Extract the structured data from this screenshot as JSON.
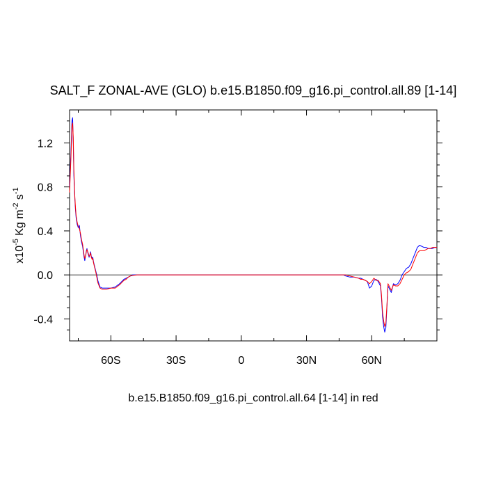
{
  "chart_data": {
    "type": "line",
    "title": "SALT_F ZONAL-AVE (GLO) b.e15.B1850.f09_g16.pi_control.all.89 [1-14]",
    "xlabel": "b.e15.B1850.f09_g16.pi_control.all.64 [1-14] in red",
    "ylabel": {
      "scale": "x10",
      "scale_exp": "-5",
      "unit1": " Kg m",
      "unit1_exp": "-2",
      "unit2": " s",
      "unit2_exp": "-1"
    },
    "xlim": [
      -79,
      90
    ],
    "ylim": [
      -0.6,
      1.5
    ],
    "x_ticks": [
      {
        "value": -60,
        "label": "60S"
      },
      {
        "value": -30,
        "label": "30S"
      },
      {
        "value": 0,
        "label": "0"
      },
      {
        "value": 30,
        "label": "30N"
      },
      {
        "value": 60,
        "label": "60N"
      }
    ],
    "y_ticks": [
      {
        "value": 1.2,
        "label": "1.2"
      },
      {
        "value": 0.8,
        "label": "0.8"
      },
      {
        "value": 0.4,
        "label": "0.4"
      },
      {
        "value": 0.0,
        "label": "0.0"
      },
      {
        "value": -0.4,
        "label": "-0.4"
      }
    ],
    "reference_line": 0,
    "series": [
      {
        "color": "#0000ff",
        "x": [
          -79,
          -78.4,
          -77.9,
          -77.6,
          -77.3,
          -77,
          -76.6,
          -76.3,
          -76,
          -75.5,
          -75,
          -74.5,
          -74,
          -73.5,
          -73,
          -72.6,
          -72.3,
          -72,
          -71.6,
          -71.3,
          -71,
          -70.6,
          -70.3,
          -70,
          -69.6,
          -69.3,
          -69,
          -68.6,
          -68.3,
          -68,
          -67.5,
          -67,
          -66.5,
          -66,
          -65,
          -64,
          -62,
          -60,
          -58,
          -56,
          -55,
          -54,
          -53,
          -52,
          -51,
          -50,
          -48,
          -45,
          -40,
          -30,
          -20,
          -10,
          0,
          10,
          20,
          30,
          40,
          43,
          45,
          47,
          48,
          50,
          52,
          54,
          55,
          56,
          57,
          58,
          59,
          60,
          61,
          62,
          63,
          64,
          64.5,
          65,
          65.5,
          66,
          66.5,
          67,
          67.5,
          68,
          69,
          70,
          71,
          72,
          73,
          74,
          75,
          76,
          77,
          78,
          79,
          80,
          81,
          82,
          83,
          84,
          85,
          86,
          87,
          88,
          89,
          90
        ],
        "y": [
          0.8,
          1.1,
          1.4,
          1.43,
          1.2,
          0.9,
          0.7,
          0.6,
          0.52,
          0.46,
          0.43,
          0.45,
          0.36,
          0.3,
          0.26,
          0.2,
          0.16,
          0.13,
          0.18,
          0.22,
          0.24,
          0.2,
          0.18,
          0.16,
          0.19,
          0.21,
          0.17,
          0.15,
          0.16,
          0.12,
          0.08,
          0.04,
          0.0,
          -0.05,
          -0.11,
          -0.12,
          -0.12,
          -0.12,
          -0.11,
          -0.08,
          -0.06,
          -0.04,
          -0.03,
          -0.02,
          -0.01,
          0.0,
          0.0,
          0.0,
          0.0,
          0.0,
          0.0,
          0.0,
          0.0,
          0.0,
          0.0,
          0.0,
          0.0,
          0.0,
          0.0,
          0.0,
          -0.01,
          -0.02,
          -0.02,
          -0.03,
          -0.03,
          -0.04,
          -0.05,
          -0.06,
          -0.12,
          -0.1,
          -0.05,
          -0.04,
          -0.06,
          -0.1,
          -0.2,
          -0.38,
          -0.47,
          -0.52,
          -0.48,
          -0.3,
          -0.1,
          -0.12,
          -0.16,
          -0.08,
          -0.09,
          -0.08,
          -0.05,
          0.0,
          0.03,
          0.06,
          0.07,
          0.1,
          0.15,
          0.2,
          0.25,
          0.27,
          0.26,
          0.25,
          0.25,
          0.24,
          0.24,
          0.24,
          0.25,
          0.25
        ]
      },
      {
        "color": "#ff0000",
        "x": [
          -79,
          -78.4,
          -77.9,
          -77.6,
          -77.3,
          -77,
          -76.6,
          -76.3,
          -76,
          -75.5,
          -75,
          -74.5,
          -74,
          -73.5,
          -73,
          -72.6,
          -72.3,
          -72,
          -71.6,
          -71.3,
          -71,
          -70.6,
          -70.3,
          -70,
          -69.6,
          -69.3,
          -69,
          -68.6,
          -68.3,
          -68,
          -67.5,
          -67,
          -66.5,
          -66,
          -65,
          -64,
          -62,
          -60,
          -58,
          -56,
          -55,
          -54,
          -53,
          -52,
          -51,
          -50,
          -48,
          -45,
          -40,
          -30,
          -20,
          -10,
          0,
          10,
          20,
          30,
          40,
          43,
          45,
          47,
          48,
          50,
          52,
          54,
          55,
          56,
          57,
          58,
          59,
          60,
          61,
          62,
          63,
          64,
          64.5,
          65,
          65.5,
          66,
          66.5,
          67,
          67.5,
          68,
          69,
          70,
          71,
          72,
          73,
          74,
          75,
          76,
          77,
          78,
          79,
          80,
          81,
          82,
          83,
          84,
          85,
          86,
          87,
          88,
          89,
          90
        ],
        "y": [
          0.75,
          1.05,
          1.35,
          1.38,
          1.25,
          0.95,
          0.72,
          0.62,
          0.54,
          0.48,
          0.44,
          0.42,
          0.38,
          0.32,
          0.28,
          0.22,
          0.18,
          0.15,
          0.17,
          0.21,
          0.23,
          0.21,
          0.19,
          0.17,
          0.18,
          0.2,
          0.16,
          0.14,
          0.15,
          0.11,
          0.07,
          0.03,
          -0.02,
          -0.07,
          -0.12,
          -0.13,
          -0.13,
          -0.12,
          -0.12,
          -0.09,
          -0.07,
          -0.05,
          -0.04,
          -0.02,
          -0.01,
          -0.005,
          0.0,
          0.0,
          0.0,
          0.0,
          0.0,
          0.0,
          0.0,
          0.0,
          0.0,
          0.0,
          0.0,
          0.0,
          0.0,
          0.0,
          0.0,
          -0.01,
          -0.02,
          -0.03,
          -0.04,
          -0.04,
          -0.05,
          -0.06,
          -0.08,
          -0.06,
          -0.03,
          -0.05,
          -0.05,
          -0.08,
          -0.18,
          -0.34,
          -0.42,
          -0.47,
          -0.44,
          -0.28,
          -0.08,
          -0.1,
          -0.14,
          -0.09,
          -0.1,
          -0.1,
          -0.08,
          -0.04,
          0.0,
          0.02,
          0.03,
          0.05,
          0.1,
          0.15,
          0.2,
          0.22,
          0.22,
          0.22,
          0.23,
          0.24,
          0.24,
          0.25,
          0.25,
          0.25
        ]
      }
    ]
  }
}
